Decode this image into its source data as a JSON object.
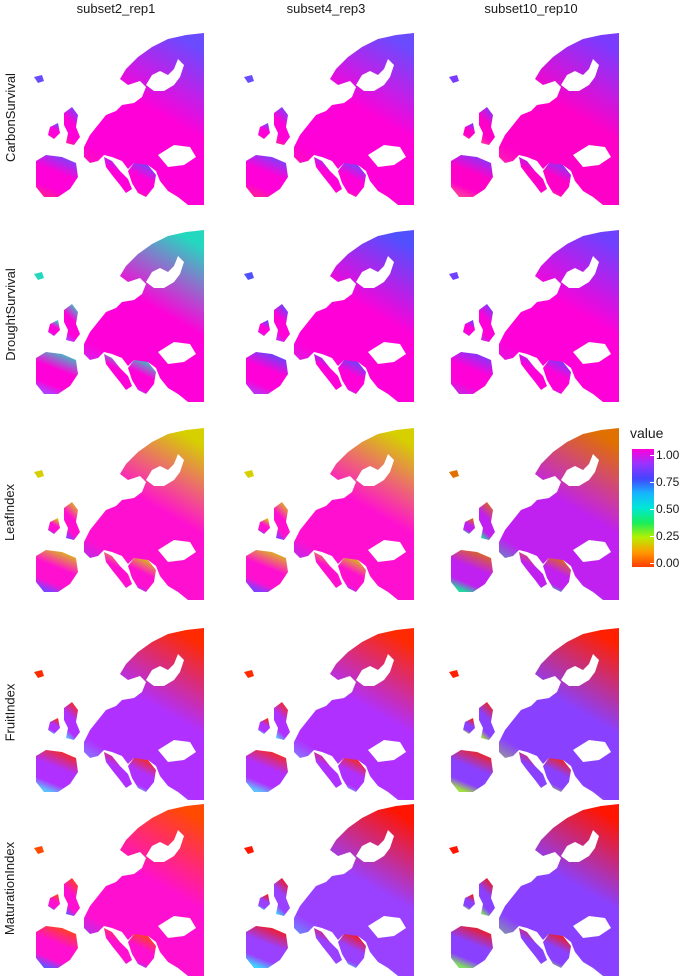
{
  "columns": [
    "subset2_rep1",
    "subset4_rep3",
    "subset10_rep10"
  ],
  "rows": [
    "CarbonSurvival",
    "DroughtSurvival",
    "LeafIndex",
    "FruitIndex",
    "MaturationIndex"
  ],
  "legend": {
    "title": "value",
    "ticks": [
      "1.00",
      "0.75",
      "0.50",
      "0.25",
      "0.00"
    ],
    "colors": [
      "#ff00d8",
      "#9a33ff",
      "#4444ff",
      "#16b5ff",
      "#00e8d6",
      "#18ee5b",
      "#b6f000",
      "#ff9a00",
      "#ff3c00"
    ]
  },
  "panel_colors": {
    "CarbonSurvival": [
      [
        "#6a4bff",
        "#ff00d8",
        "#ff1aa0"
      ],
      [
        "#6a4bff",
        "#ff00d8",
        "#ff1aa0"
      ],
      [
        "#7a3bff",
        "#ff00c8",
        "#ff3aa0"
      ]
    ],
    "DroughtSurvival": [
      [
        "#24d8c0",
        "#ff00d8",
        "#b040ff"
      ],
      [
        "#5050ff",
        "#ff00d8",
        "#c030f0"
      ],
      [
        "#7040ff",
        "#ff00d8",
        "#d020e0"
      ]
    ],
    "LeafIndex": [
      [
        "#d6d000",
        "#ff10d0",
        "#8040ff"
      ],
      [
        "#d6d000",
        "#ff10d0",
        "#8040ff"
      ],
      [
        "#e07000",
        "#c020f0",
        "#20d8a0"
      ]
    ],
    "FruitIndex": [
      [
        "#ff2a00",
        "#b030ff",
        "#60c0ff"
      ],
      [
        "#ff2a00",
        "#b030ff",
        "#60c0ff"
      ],
      [
        "#ff2000",
        "#8a40ff",
        "#a0e040"
      ]
    ],
    "MaturationIndex": [
      [
        "#ff4a00",
        "#ff10d0",
        "#6a50ff"
      ],
      [
        "#ff1500",
        "#9a40ff",
        "#40d0ff"
      ],
      [
        "#ff1500",
        "#8a40ff",
        "#80e060"
      ]
    ]
  }
}
